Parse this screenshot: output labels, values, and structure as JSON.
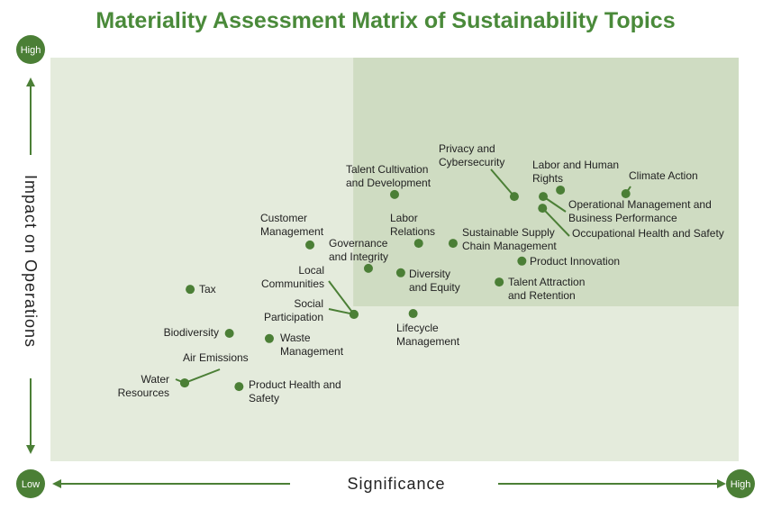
{
  "chart_data": {
    "type": "scatter",
    "title": "Materiality Assessment Matrix of Sustainability Topics",
    "xlabel": "Significance",
    "ylabel": "Impact on Operations",
    "x_low_label": "Low",
    "x_high_label": "High",
    "y_high_label": "High",
    "xlim": [
      0,
      10
    ],
    "ylim": [
      0,
      10
    ],
    "grid": false,
    "highlight_region": {
      "x_min": 4.4,
      "y_min": 3.84
    },
    "colors": {
      "title": "#4a8a3a",
      "point": "#4b7f36",
      "background": "#e4ebdc",
      "highlight": "#cfdcc2",
      "axis": "#4b7f36"
    },
    "points": [
      {
        "label": "Climate Action",
        "x": 8.36,
        "y": 6.63
      },
      {
        "label": "Labor and Human\nRights",
        "x": 7.41,
        "y": 6.72
      },
      {
        "label": "Operational Management and\nBusiness Performance",
        "x": 7.16,
        "y": 6.56
      },
      {
        "label": "Occupational Health and Safety",
        "x": 7.15,
        "y": 6.27
      },
      {
        "label": "Privacy and\nCybersecurity",
        "x": 6.74,
        "y": 6.56
      },
      {
        "label": "Talent Cultivation\nand Development",
        "x": 5.0,
        "y": 6.61
      },
      {
        "label": "Customer\nManagement",
        "x": 3.77,
        "y": 5.36
      },
      {
        "label": "Labor\nRelations",
        "x": 5.35,
        "y": 5.4
      },
      {
        "label": "Sustainable Supply\nChain Management",
        "x": 5.85,
        "y": 5.4
      },
      {
        "label": "Governance\nand Integrity",
        "x": 4.62,
        "y": 4.78
      },
      {
        "label": "Diversity\nand Equity",
        "x": 5.09,
        "y": 4.67
      },
      {
        "label": "Product Innovation",
        "x": 6.85,
        "y": 4.96
      },
      {
        "label": "Talent Attraction\nand Retention",
        "x": 6.52,
        "y": 4.44
      },
      {
        "label": "Local\nCommunities",
        "x": 4.41,
        "y": 3.64
      },
      {
        "label": "Social\nParticipation",
        "x": 4.41,
        "y": 3.64
      },
      {
        "label": "Lifecycle\nManagement",
        "x": 5.27,
        "y": 3.66
      },
      {
        "label": "Tax",
        "x": 2.03,
        "y": 4.26
      },
      {
        "label": "Biodiversity",
        "x": 2.6,
        "y": 3.17
      },
      {
        "label": "Waste\nManagement",
        "x": 3.18,
        "y": 3.04
      },
      {
        "label": "Air Emissions",
        "x": 1.95,
        "y": 1.94
      },
      {
        "label": "Water\nResources",
        "x": 1.95,
        "y": 1.94
      },
      {
        "label": "Product Health and\nSafety",
        "x": 2.74,
        "y": 1.85
      }
    ]
  }
}
